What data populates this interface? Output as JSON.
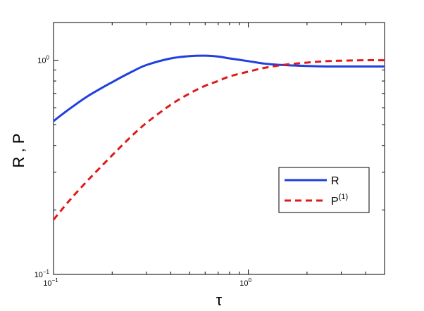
{
  "chart_data": {
    "type": "line",
    "xlabel": "τ",
    "ylabel": "R , P",
    "x_scale": "log",
    "y_scale": "log",
    "xlim": [
      0.1,
      5
    ],
    "ylim": [
      0.1,
      1.5
    ],
    "x_ticks": [
      {
        "value": 0.1,
        "base": "10",
        "exp": "−1"
      },
      {
        "value": 1,
        "base": "10",
        "exp": "0"
      }
    ],
    "y_ticks": [
      {
        "value": 0.1,
        "base": "10",
        "exp": "−1"
      },
      {
        "value": 1,
        "base": "10",
        "exp": "0"
      }
    ],
    "grid": false,
    "legend_position": "right",
    "series": [
      {
        "name": "R",
        "color": "#1f3fe0",
        "dash": "solid",
        "x": [
          0.1,
          0.12,
          0.15,
          0.2,
          0.25,
          0.3,
          0.4,
          0.5,
          0.6,
          0.7,
          0.8,
          1.0,
          1.2,
          1.5,
          2.0,
          2.5,
          3.0,
          4.0,
          5.0
        ],
        "y": [
          0.52,
          0.59,
          0.68,
          0.79,
          0.88,
          0.95,
          1.02,
          1.045,
          1.05,
          1.04,
          1.02,
          0.99,
          0.965,
          0.95,
          0.94,
          0.935,
          0.935,
          0.935,
          0.935
        ]
      },
      {
        "name": "P",
        "name_sup": "(1)",
        "color": "#e01a1a",
        "dash": "dashed",
        "x": [
          0.1,
          0.12,
          0.15,
          0.2,
          0.25,
          0.3,
          0.4,
          0.5,
          0.6,
          0.7,
          0.8,
          1.0,
          1.2,
          1.5,
          2.0,
          2.5,
          3.0,
          4.0,
          5.0
        ],
        "y": [
          0.18,
          0.22,
          0.275,
          0.36,
          0.44,
          0.51,
          0.62,
          0.7,
          0.76,
          0.8,
          0.84,
          0.885,
          0.92,
          0.95,
          0.975,
          0.99,
          0.995,
          1.0,
          1.0
        ]
      }
    ]
  }
}
